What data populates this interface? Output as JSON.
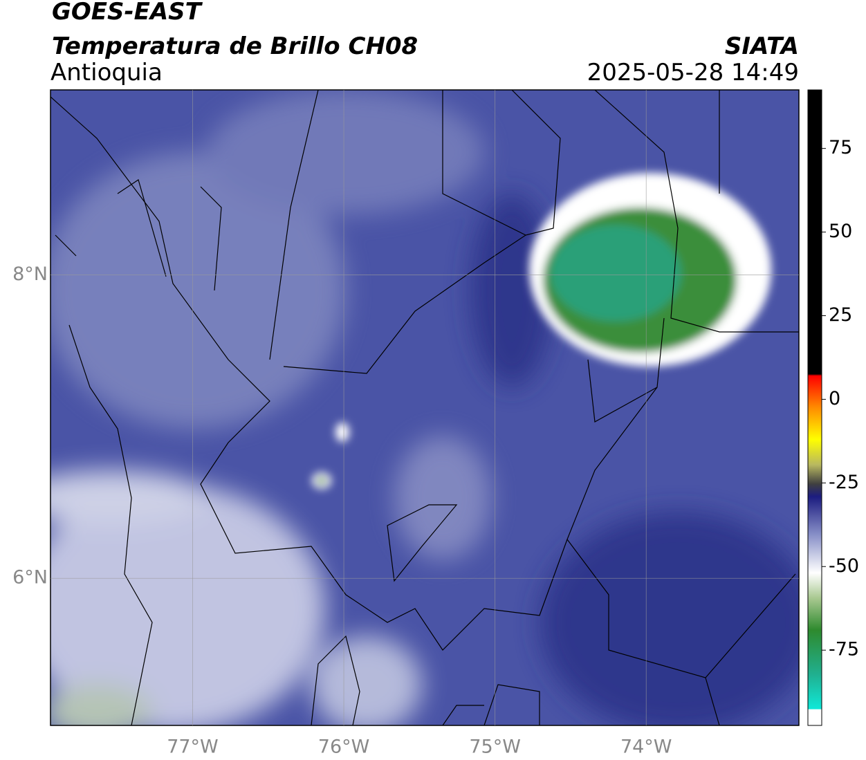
{
  "header": {
    "title": "GOES-EAST",
    "subtitle": "Temperatura de Brillo CH08",
    "region": "Antioquia",
    "source": "SIATA",
    "datetime": "2025-05-28 14:49"
  },
  "map": {
    "xlim": [
      -77.94,
      -72.99
    ],
    "ylim": [
      5.03,
      9.22
    ],
    "xticks": [
      {
        "value": -77,
        "label": "77°W"
      },
      {
        "value": -76,
        "label": "76°W"
      },
      {
        "value": -75,
        "label": "75°W"
      },
      {
        "value": -74,
        "label": "74°W"
      }
    ],
    "yticks": [
      {
        "value": 8,
        "label": "8°N"
      },
      {
        "value": 6,
        "label": "6°N"
      }
    ]
  },
  "colorbar": {
    "lim": [
      -97.5,
      92.5
    ],
    "ticks": [
      75,
      50,
      25,
      0,
      -25,
      -50,
      -75
    ]
  }
}
